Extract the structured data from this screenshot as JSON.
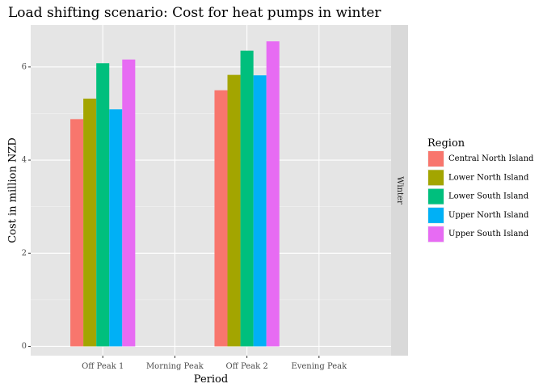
{
  "chart_data": {
    "type": "bar",
    "title": "Load shifting scenario: Cost for heat pumps in winter",
    "xlabel": "Period",
    "ylabel": "Cost in million NZD",
    "facet_label": "Winter",
    "categories": [
      "Off Peak 1",
      "Morning Peak",
      "Off Peak 2",
      "Evening Peak"
    ],
    "yticks": [
      0,
      2,
      4,
      6
    ],
    "ylim": [
      -0.2,
      6.9
    ],
    "legend_title": "Region",
    "legend_position": "right",
    "grid": true,
    "series": [
      {
        "name": "Central North Island",
        "color": "#F8766D",
        "values": [
          4.88,
          null,
          5.5,
          null
        ]
      },
      {
        "name": "Lower North Island",
        "color": "#A3A500",
        "values": [
          5.32,
          null,
          5.83,
          null
        ]
      },
      {
        "name": "Lower South Island",
        "color": "#00BF7D",
        "values": [
          6.08,
          null,
          6.35,
          null
        ]
      },
      {
        "name": "Upper North Island",
        "color": "#00B0F6",
        "values": [
          5.09,
          null,
          5.82,
          null
        ]
      },
      {
        "name": "Upper South Island",
        "color": "#E76BF3",
        "values": [
          6.16,
          null,
          6.55,
          null
        ]
      }
    ]
  }
}
